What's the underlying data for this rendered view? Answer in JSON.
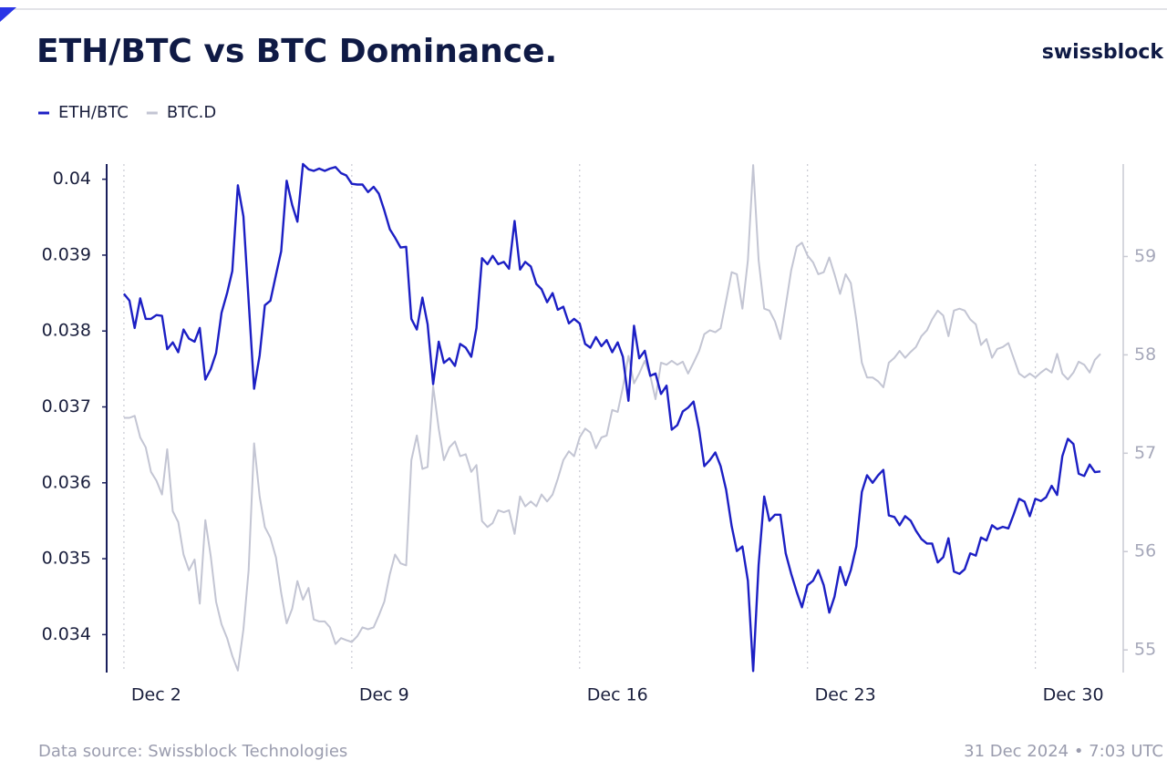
{
  "chart_data": {
    "type": "line",
    "title": "ETH/BTC vs BTC Dominance.",
    "brand": "swissblock",
    "source": "Data source: Swissblock Technologies",
    "timestamp": "31 Dec 2024 • 7:03 UTC",
    "x": [
      2,
      2.17,
      2.33,
      2.5,
      2.67,
      2.83,
      3,
      3.17,
      3.33,
      3.5,
      3.67,
      3.83,
      4,
      4.17,
      4.33,
      4.5,
      4.67,
      4.83,
      5,
      5.17,
      5.33,
      5.5,
      5.67,
      5.83,
      6,
      6.17,
      6.33,
      6.5,
      6.67,
      6.83,
      7,
      7.17,
      7.33,
      7.5,
      7.67,
      7.83,
      8,
      8.17,
      8.33,
      8.5,
      8.67,
      8.83,
      9,
      9.17,
      9.33,
      9.5,
      9.67,
      9.83,
      10,
      10.17,
      10.33,
      10.5,
      10.67,
      10.83,
      11,
      11.17,
      11.33,
      11.5,
      11.67,
      11.83,
      12,
      12.17,
      12.33,
      12.5,
      12.67,
      12.83,
      13,
      13.17,
      13.33,
      13.5,
      13.67,
      13.83,
      14,
      14.17,
      14.33,
      14.5,
      14.67,
      14.83,
      15,
      15.17,
      15.33,
      15.5,
      15.67,
      15.83,
      16,
      16.17,
      16.33,
      16.5,
      16.67,
      16.83,
      17,
      17.17,
      17.33,
      17.5,
      17.67,
      17.83,
      18,
      18.17,
      18.33,
      18.5,
      18.67,
      18.83,
      19,
      19.17,
      19.33,
      19.5,
      19.67,
      19.83,
      20,
      20.17,
      20.33,
      20.5,
      20.67,
      20.83,
      21,
      21.17,
      21.33,
      21.5,
      21.67,
      21.83,
      22,
      22.17,
      22.33,
      22.5,
      22.67,
      22.83,
      23,
      23.17,
      23.33,
      23.5,
      23.67,
      23.83,
      24,
      24.17,
      24.33,
      24.5,
      24.67,
      24.83,
      25,
      25.17,
      25.33,
      25.5,
      25.67,
      25.83,
      26,
      26.17,
      26.33,
      26.5,
      26.67,
      26.83,
      27,
      27.17,
      27.33,
      27.5,
      27.67,
      27.83,
      28,
      28.17,
      28.33,
      28.5,
      28.67,
      28.83,
      29,
      29.17,
      29.33,
      29.5,
      29.67,
      29.83,
      30,
      30.17,
      30.33,
      30.5,
      30.67,
      30.83,
      31,
      31.17,
      31.33,
      31.5,
      31.67,
      31.83,
      32
    ],
    "xlim": [
      1.47,
      32.7
    ],
    "xticks": [
      {
        "value": 2,
        "label": "Dec 2"
      },
      {
        "value": 9,
        "label": "Dec 9"
      },
      {
        "value": 16,
        "label": "Dec 16"
      },
      {
        "value": 23,
        "label": "Dec 23"
      },
      {
        "value": 30,
        "label": "Dec 30"
      }
    ],
    "ylim": [
      0.0335,
      0.0402
    ],
    "yticks": [
      0.034,
      0.035,
      0.036,
      0.037,
      0.038,
      0.039,
      0.04
    ],
    "y2lim": [
      54.77,
      59.94
    ],
    "y2ticks": [
      55,
      56,
      57,
      58,
      59
    ],
    "grid": "x",
    "legend": "top-left",
    "series": [
      {
        "name": "ETH/BTC",
        "color": "#1c1fc4",
        "axis": "y",
        "values": [
          0.03849,
          0.0384,
          0.03804,
          0.03843,
          0.03816,
          0.03816,
          0.03821,
          0.0382,
          0.03776,
          0.03785,
          0.03772,
          0.03802,
          0.0379,
          0.03786,
          0.03804,
          0.03736,
          0.0375,
          0.03771,
          0.03824,
          0.0385,
          0.03879,
          0.03992,
          0.03951,
          0.0384,
          0.03724,
          0.03768,
          0.03834,
          0.0384,
          0.03874,
          0.03905,
          0.03998,
          0.03966,
          0.03944,
          0.0402,
          0.04013,
          0.04011,
          0.04014,
          0.04011,
          0.04014,
          0.04016,
          0.04008,
          0.04005,
          0.03994,
          0.03993,
          0.03993,
          0.03983,
          0.0399,
          0.03981,
          0.03959,
          0.03934,
          0.03923,
          0.0391,
          0.03911,
          0.03816,
          0.03802,
          0.03844,
          0.03809,
          0.0373,
          0.03786,
          0.03758,
          0.03764,
          0.03754,
          0.03783,
          0.03778,
          0.03766,
          0.03804,
          0.03896,
          0.03888,
          0.03899,
          0.03888,
          0.03891,
          0.03882,
          0.03945,
          0.03881,
          0.03891,
          0.03885,
          0.03862,
          0.03855,
          0.03838,
          0.0385,
          0.03828,
          0.03832,
          0.0381,
          0.03816,
          0.0381,
          0.03783,
          0.03778,
          0.03792,
          0.0378,
          0.03788,
          0.03772,
          0.03785,
          0.03766,
          0.03708,
          0.03807,
          0.03764,
          0.03774,
          0.03741,
          0.03744,
          0.03717,
          0.03728,
          0.0367,
          0.03676,
          0.03694,
          0.03699,
          0.03707,
          0.0367,
          0.03622,
          0.0363,
          0.0364,
          0.03622,
          0.03591,
          0.03543,
          0.0351,
          0.03516,
          0.03471,
          0.03352,
          0.03492,
          0.03582,
          0.0355,
          0.03558,
          0.03558,
          0.03507,
          0.0348,
          0.03456,
          0.03436,
          0.03465,
          0.03471,
          0.03485,
          0.03465,
          0.03429,
          0.0345,
          0.03489,
          0.03465,
          0.03485,
          0.03516,
          0.03588,
          0.0361,
          0.036,
          0.0361,
          0.03617,
          0.03557,
          0.03555,
          0.03544,
          0.03556,
          0.0355,
          0.03537,
          0.03526,
          0.0352,
          0.0352,
          0.03495,
          0.03502,
          0.03527,
          0.03483,
          0.0348,
          0.03486,
          0.03507,
          0.03504,
          0.03528,
          0.03524,
          0.03544,
          0.03539,
          0.03542,
          0.0354,
          0.03558,
          0.03579,
          0.03575,
          0.03556,
          0.03579,
          0.03576,
          0.03581,
          0.03596,
          0.03584,
          0.03635,
          0.03658,
          0.03651,
          0.03612,
          0.03609,
          0.03624,
          0.03614,
          0.03615
        ]
      },
      {
        "name": "BTC.D",
        "color": "#c3c5d3",
        "axis": "y2",
        "values": [
          57.36,
          57.36,
          57.38,
          57.16,
          57.06,
          56.81,
          56.72,
          56.58,
          57.04,
          56.41,
          56.3,
          55.97,
          55.81,
          55.92,
          55.47,
          56.32,
          55.95,
          55.49,
          55.26,
          55.12,
          54.94,
          54.79,
          55.21,
          55.81,
          57.1,
          56.56,
          56.25,
          56.14,
          55.94,
          55.58,
          55.27,
          55.42,
          55.7,
          55.51,
          55.63,
          55.31,
          55.29,
          55.29,
          55.23,
          55.06,
          55.12,
          55.1,
          55.08,
          55.14,
          55.23,
          55.21,
          55.23,
          55.35,
          55.49,
          55.77,
          55.97,
          55.88,
          55.86,
          56.93,
          57.18,
          56.84,
          56.86,
          57.68,
          57.25,
          56.93,
          57.06,
          57.12,
          56.97,
          56.99,
          56.81,
          56.88,
          56.31,
          56.25,
          56.29,
          56.42,
          56.4,
          56.42,
          56.18,
          56.56,
          56.46,
          56.51,
          56.46,
          56.58,
          56.51,
          56.58,
          56.74,
          56.93,
          57.02,
          56.97,
          57.16,
          57.25,
          57.21,
          57.05,
          57.16,
          57.18,
          57.44,
          57.42,
          57.67,
          57.99,
          57.71,
          57.81,
          57.94,
          57.79,
          57.55,
          57.92,
          57.9,
          57.94,
          57.9,
          57.93,
          57.81,
          57.92,
          58.04,
          58.21,
          58.25,
          58.23,
          58.27,
          58.55,
          58.84,
          58.82,
          58.47,
          58.96,
          59.93,
          58.96,
          58.47,
          58.45,
          58.34,
          58.16,
          58.5,
          58.86,
          59.1,
          59.14,
          59.01,
          58.94,
          58.82,
          58.84,
          58.99,
          58.82,
          58.62,
          58.82,
          58.73,
          58.36,
          57.92,
          57.77,
          57.77,
          57.73,
          57.67,
          57.92,
          57.97,
          58.04,
          57.97,
          58.03,
          58.08,
          58.19,
          58.25,
          58.36,
          58.45,
          58.4,
          58.19,
          58.45,
          58.47,
          58.45,
          58.36,
          58.31,
          58.1,
          58.16,
          57.97,
          58.06,
          58.08,
          58.12,
          57.97,
          57.81,
          57.77,
          57.81,
          57.77,
          57.82,
          57.86,
          57.82,
          58.01,
          57.81,
          57.75,
          57.82,
          57.93,
          57.9,
          57.82,
          57.95,
          58.01
        ]
      }
    ]
  }
}
